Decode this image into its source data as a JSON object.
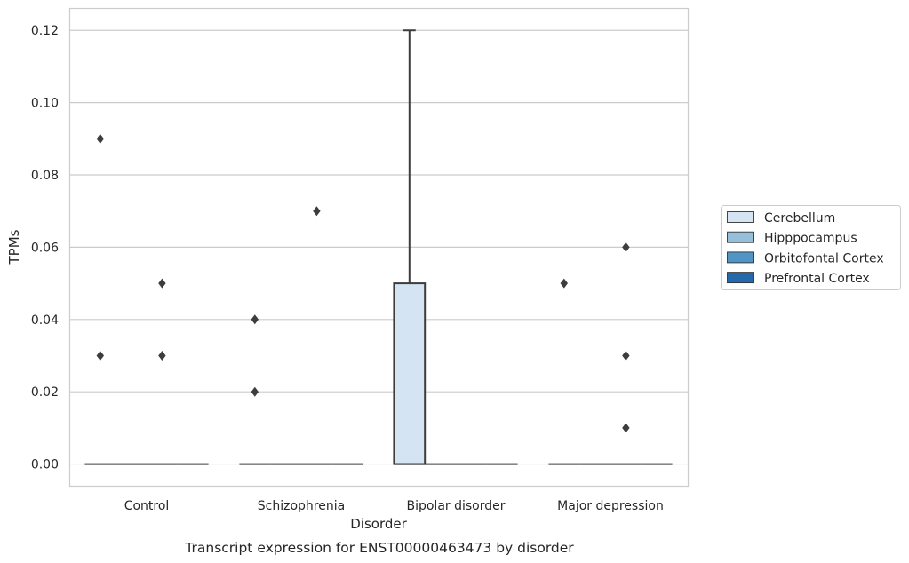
{
  "chart_data": {
    "type": "box",
    "caption": "Transcript expression for ENST00000463473 by disorder",
    "xlabel": "Disorder",
    "ylabel": "TPMs",
    "ylim": [
      -0.006,
      0.1262
    ],
    "yticks": [
      "0.00",
      "0.02",
      "0.04",
      "0.06",
      "0.08",
      "0.10",
      "0.12"
    ],
    "ytick_values": [
      0,
      0.02,
      0.04,
      0.06,
      0.08,
      0.1,
      0.12
    ],
    "grid": true,
    "legend_position": "right",
    "categories": [
      "Control",
      "Schizophrenia",
      "Bipolar disorder",
      "Major depression"
    ],
    "series": [
      {
        "name": "Cerebellum",
        "color": "#d4e4f2"
      },
      {
        "name": "Hipppocampus",
        "color": "#95bfdb"
      },
      {
        "name": "Orbitofontal Cortex",
        "color": "#5195c7"
      },
      {
        "name": "Prefrontal Cortex",
        "color": "#2469ab"
      }
    ],
    "boxes": [
      {
        "category": 0,
        "series": 0,
        "q1": 0,
        "median": 0,
        "q3": 0,
        "whisker_low": 0,
        "whisker_high": 0,
        "outliers": [
          0.03,
          0.09
        ]
      },
      {
        "category": 0,
        "series": 1,
        "q1": 0,
        "median": 0,
        "q3": 0,
        "whisker_low": 0,
        "whisker_high": 0,
        "outliers": []
      },
      {
        "category": 0,
        "series": 2,
        "q1": 0,
        "median": 0,
        "q3": 0,
        "whisker_low": 0,
        "whisker_high": 0,
        "outliers": [
          0.03,
          0.05
        ]
      },
      {
        "category": 0,
        "series": 3,
        "q1": 0,
        "median": 0,
        "q3": 0,
        "whisker_low": 0,
        "whisker_high": 0,
        "outliers": []
      },
      {
        "category": 1,
        "series": 0,
        "q1": 0,
        "median": 0,
        "q3": 0,
        "whisker_low": 0,
        "whisker_high": 0,
        "outliers": [
          0.02,
          0.04
        ]
      },
      {
        "category": 1,
        "series": 1,
        "q1": 0,
        "median": 0,
        "q3": 0,
        "whisker_low": 0,
        "whisker_high": 0,
        "outliers": []
      },
      {
        "category": 1,
        "series": 2,
        "q1": 0,
        "median": 0,
        "q3": 0,
        "whisker_low": 0,
        "whisker_high": 0,
        "outliers": [
          0.07
        ]
      },
      {
        "category": 1,
        "series": 3,
        "q1": 0,
        "median": 0,
        "q3": 0,
        "whisker_low": 0,
        "whisker_high": 0,
        "outliers": []
      },
      {
        "category": 2,
        "series": 0,
        "q1": 0,
        "median": 0,
        "q3": 0.05,
        "whisker_low": 0,
        "whisker_high": 0.12,
        "outliers": []
      },
      {
        "category": 2,
        "series": 1,
        "q1": 0,
        "median": 0,
        "q3": 0,
        "whisker_low": 0,
        "whisker_high": 0,
        "outliers": []
      },
      {
        "category": 2,
        "series": 2,
        "q1": 0,
        "median": 0,
        "q3": 0,
        "whisker_low": 0,
        "whisker_high": 0,
        "outliers": []
      },
      {
        "category": 2,
        "series": 3,
        "q1": 0,
        "median": 0,
        "q3": 0,
        "whisker_low": 0,
        "whisker_high": 0,
        "outliers": []
      },
      {
        "category": 3,
        "series": 0,
        "q1": 0,
        "median": 0,
        "q3": 0,
        "whisker_low": 0,
        "whisker_high": 0,
        "outliers": [
          0.05
        ]
      },
      {
        "category": 3,
        "series": 1,
        "q1": 0,
        "median": 0,
        "q3": 0,
        "whisker_low": 0,
        "whisker_high": 0,
        "outliers": []
      },
      {
        "category": 3,
        "series": 2,
        "q1": 0,
        "median": 0,
        "q3": 0,
        "whisker_low": 0,
        "whisker_high": 0,
        "outliers": [
          0.01,
          0.03,
          0.06
        ]
      },
      {
        "category": 3,
        "series": 3,
        "q1": 0,
        "median": 0,
        "q3": 0,
        "whisker_low": 0,
        "whisker_high": 0,
        "outliers": []
      }
    ],
    "colors": {
      "grid": "#cccccc",
      "frame": "#cccccc",
      "line": "#3d3d3d",
      "outlier": "#3d3d3d"
    }
  }
}
